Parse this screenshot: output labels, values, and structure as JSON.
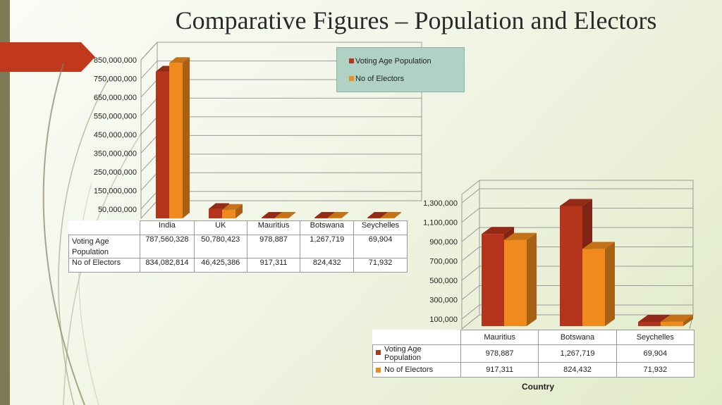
{
  "title": "Comparative Figures – Population and Electors",
  "colors": {
    "series1": "#b5341c",
    "series2": "#f08a1c",
    "accent_ribbon": "#c0391d",
    "sidebar": "#7d7a55"
  },
  "legend": {
    "items": [
      "Voting Age Population",
      "No of Electors"
    ]
  },
  "left_table": {
    "headers": [
      "India",
      "UK",
      "Mauritius",
      "Botswana",
      "Seychelles"
    ],
    "row1_label": "Voting Age Population",
    "row1": [
      "787,560,328",
      "50,780,423",
      "978,887",
      "1,267,719",
      "69,904"
    ],
    "row2_label": "No of Electors",
    "row2": [
      "834,082,814",
      "46,425,386",
      "917,311",
      "824,432",
      "71,932"
    ]
  },
  "right_table": {
    "headers": [
      "Mauritius",
      "Botswana",
      "Seychelles"
    ],
    "row1_label": "Voting Age Population",
    "row1": [
      "978,887",
      "1,267,719",
      "69,904"
    ],
    "row2_label": "No of Electors",
    "row2": [
      "917,311",
      "824,432",
      "71,932"
    ]
  },
  "right_axis_title": "Country",
  "chart_data": [
    {
      "type": "bar",
      "categories": [
        "India",
        "UK",
        "Mauritius",
        "Botswana",
        "Seychelles"
      ],
      "series": [
        {
          "name": "Voting Age Population",
          "values": [
            787560328,
            50780423,
            978887,
            1267719,
            69904
          ]
        },
        {
          "name": "No of Electors",
          "values": [
            834082814,
            46425386,
            917311,
            824432,
            71932
          ]
        }
      ],
      "y_tick_labels": [
        "850,000,000",
        "750,000,000",
        "650,000,000",
        "550,000,000",
        "450,000,000",
        "350,000,000",
        "250,000,000",
        "150,000,000",
        "50,000,000"
      ],
      "ylim": [
        0,
        850000000
      ],
      "grid": true,
      "legend": "top-right",
      "title": "",
      "xlabel": "",
      "ylabel": ""
    },
    {
      "type": "bar",
      "categories": [
        "Mauritius",
        "Botswana",
        "Seychelles"
      ],
      "series": [
        {
          "name": "Voting Age Population",
          "values": [
            978887,
            1267719,
            69904
          ]
        },
        {
          "name": "No of Electors",
          "values": [
            917311,
            824432,
            71932
          ]
        }
      ],
      "y_tick_labels": [
        "1,300,000",
        "1,100,000",
        "900,000",
        "700,000",
        "500,000",
        "300,000",
        "100,000"
      ],
      "ylim": [
        0,
        1300000
      ],
      "grid": true,
      "xlabel": "Country",
      "title": "",
      "ylabel": ""
    }
  ]
}
